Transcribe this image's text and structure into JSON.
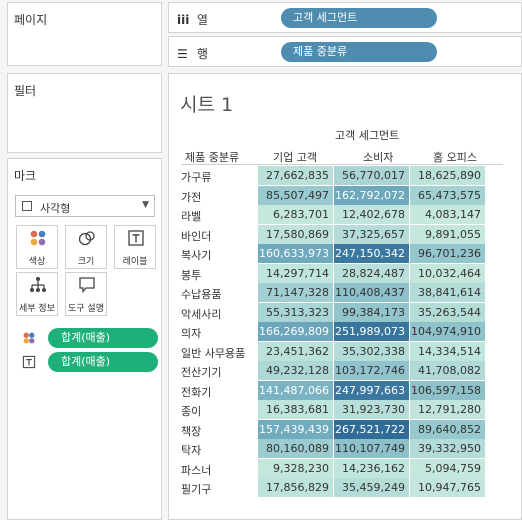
{
  "sidebar": {
    "pages_title": "페이지",
    "filters_title": "필터",
    "marks": {
      "title": "마크",
      "type": "사각형",
      "buttons": [
        {
          "label": "색상",
          "icon": "color-icon"
        },
        {
          "label": "크기",
          "icon": "size-icon"
        },
        {
          "label": "레이블",
          "icon": "label-icon"
        },
        {
          "label": "세부 정보",
          "icon": "detail-icon"
        },
        {
          "label": "도구 설명",
          "icon": "tooltip-icon"
        }
      ],
      "pills": [
        {
          "label": "합계(매출)",
          "icon": "color-icon"
        },
        {
          "label": "합계(매출)",
          "icon": "label-icon"
        }
      ]
    }
  },
  "shelves": {
    "columns": {
      "label": "열",
      "glyph": "iii",
      "pill": "고객 세그먼트"
    },
    "rows": {
      "label": "행",
      "glyph": "☰",
      "pill": "제품 중분류"
    }
  },
  "sheet": {
    "title": "시트 1",
    "column_group_label": "고객 세그먼트",
    "row_header": "제품 중분류",
    "columns": [
      "기업 고객",
      "소비자",
      "홈 오피스"
    ],
    "rows": [
      {
        "label": "가구류",
        "values": [
          "27,662,835",
          "56,770,017",
          "18,625,890"
        ]
      },
      {
        "label": "가전",
        "values": [
          "85,507,497",
          "162,792,072",
          "65,473,575"
        ]
      },
      {
        "label": "라벨",
        "values": [
          "6,283,701",
          "12,402,678",
          "4,083,147"
        ]
      },
      {
        "label": "바인더",
        "values": [
          "17,580,869",
          "37,325,657",
          "9,891,055"
        ]
      },
      {
        "label": "복사기",
        "values": [
          "160,633,973",
          "247,150,342",
          "96,701,236"
        ]
      },
      {
        "label": "봉투",
        "values": [
          "14,297,714",
          "28,824,487",
          "10,032,464"
        ]
      },
      {
        "label": "수납용품",
        "values": [
          "71,147,328",
          "110,408,437",
          "38,841,614"
        ]
      },
      {
        "label": "악세사리",
        "values": [
          "55,313,323",
          "99,384,173",
          "35,263,544"
        ]
      },
      {
        "label": "의자",
        "values": [
          "166,269,809",
          "251,989,073",
          "104,974,910"
        ]
      },
      {
        "label": "일반 사무용품",
        "values": [
          "23,451,362",
          "35,302,338",
          "14,334,514"
        ]
      },
      {
        "label": "전산기기",
        "values": [
          "49,232,128",
          "103,172,746",
          "41,708,082"
        ]
      },
      {
        "label": "전화기",
        "values": [
          "141,487,066",
          "247,997,663",
          "106,597,158"
        ]
      },
      {
        "label": "종이",
        "values": [
          "16,383,681",
          "31,923,730",
          "12,791,280"
        ]
      },
      {
        "label": "책장",
        "values": [
          "157,439,439",
          "267,521,722",
          "89,640,852"
        ]
      },
      {
        "label": "탁자",
        "values": [
          "80,160,089",
          "110,107,749",
          "39,332,950"
        ]
      },
      {
        "label": "파스너",
        "values": [
          "9,328,230",
          "14,236,162",
          "5,094,759"
        ]
      },
      {
        "label": "필기구",
        "values": [
          "17,856,829",
          "35,459,249",
          "10,947,765"
        ]
      }
    ],
    "color_scale": {
      "low": "#c8eadf",
      "mid": "#7fb8c6",
      "high": "#2f6d98",
      "max_value": 267521722
    }
  }
}
